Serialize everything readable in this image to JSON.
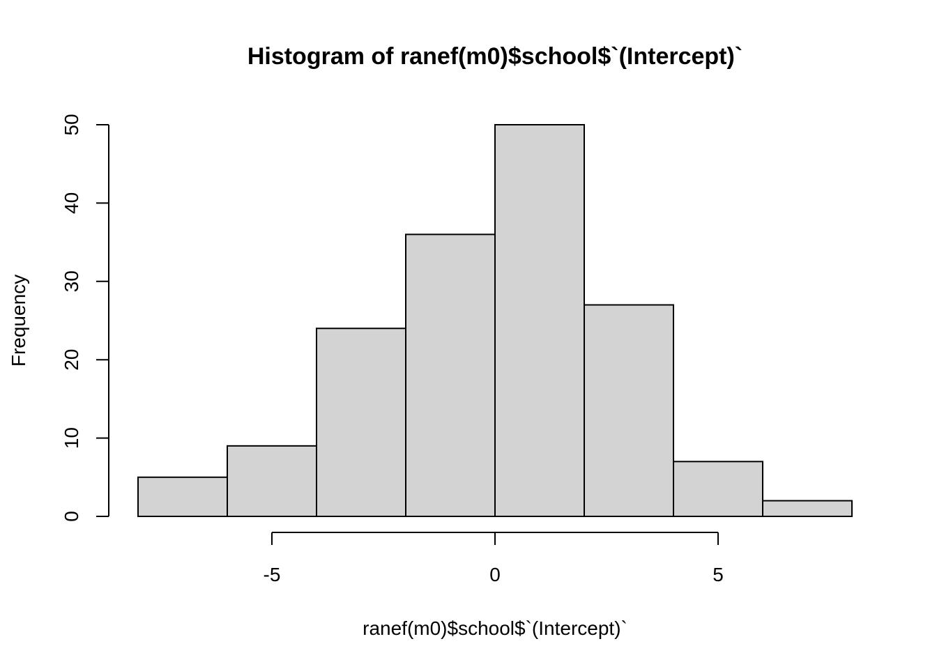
{
  "chart_data": {
    "type": "bar",
    "title": "Histogram of ranef(m0)$school$`(Intercept)`",
    "xlabel": "ranef(m0)$school$`(Intercept)`",
    "ylabel": "Frequency",
    "bins": [
      {
        "from": -8,
        "to": -6,
        "count": 5
      },
      {
        "from": -6,
        "to": -4,
        "count": 9
      },
      {
        "from": -4,
        "to": -2,
        "count": 24
      },
      {
        "from": -2,
        "to": 0,
        "count": 36
      },
      {
        "from": 0,
        "to": 2,
        "count": 50
      },
      {
        "from": 2,
        "to": 4,
        "count": 27
      },
      {
        "from": 4,
        "to": 6,
        "count": 7
      },
      {
        "from": 6,
        "to": 8,
        "count": 2
      }
    ],
    "x_ticks": [
      -5,
      0,
      5
    ],
    "x_tick_labels": [
      "-5",
      "0",
      "5"
    ],
    "y_ticks": [
      0,
      10,
      20,
      30,
      40,
      50
    ],
    "y_tick_labels": [
      "0",
      "10",
      "20",
      "30",
      "40",
      "50"
    ],
    "xlim": [
      -8,
      8
    ],
    "ylim": [
      0,
      50
    ],
    "grid": false,
    "legend": "none",
    "colors": {
      "bar_fill": "#d3d3d3",
      "bar_stroke": "#000000",
      "text": "#000000",
      "background": "#ffffff"
    }
  }
}
